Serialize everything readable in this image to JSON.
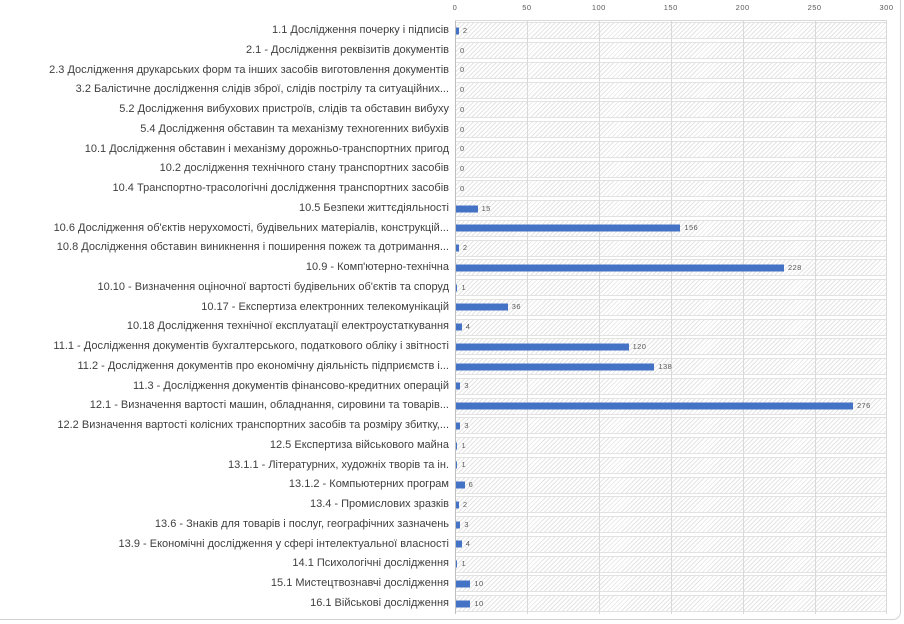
{
  "chart_data": {
    "type": "bar",
    "orientation": "horizontal",
    "title": "",
    "xlabel": "",
    "ylabel": "",
    "xlim": [
      0,
      300
    ],
    "xticks": [
      0,
      50,
      100,
      150,
      200,
      250,
      300
    ],
    "grid": true,
    "legend": false,
    "data_labels": true,
    "bar_color": "#4472C4",
    "plot_area_fill": "diagonal-hatch-pattern",
    "categories": [
      "1.1 Дослідження почерку і підписів",
      "2.1 - Дослідження реквізитів документів",
      "2.3 Дослідження друкарських форм та інших засобів виготовлення документів",
      "3.2 Балістичне дослідження слідів зброї, слідів пострілу та ситуаційних...",
      "5.2 Дослідження вибухових пристроїв, слідів та обставин вибуху",
      "5.4 Дослідження обставин та механізму техногенних вибухів",
      "10.1 Дослідження обставин і механізму дорожньо-транспортних пригод",
      "10.2 дослідження технічного стану транспортних засобів",
      "10.4 Транспортно-трасологічні дослідження транспортних засобів",
      "10.5 Безпеки життєдіяльності",
      "10.6 Дослідження об'єктів нерухомості, будівельних матеріалів, конструкцій...",
      "10.8 Дослідження обставин виникнення і поширення пожеж та дотримання...",
      "10.9 - Комп'ютерно-технічна",
      "10.10 - Визначення оціночної вартості будівельних об'єктів та споруд",
      "10.17 - Експертиза електронних телекомунікацій",
      "10.18 Дослідження технічної експлуатації електроустаткування",
      "11.1 - Дослідження документів бухгалтерського, податкового обліку і звітності",
      "11.2 - Дослідження документів про економічну діяльність підприємств і...",
      "11.3 - Дослідження документів фінансово-кредитних операцій",
      "12.1 - Визначення вартості машин, обладнання, сировини та товарів...",
      "12.2 Визначення вартості колісних транспортних засобів та розміру збитку,...",
      "12.5 Експертиза військового майна",
      "13.1.1 - Літературних, художніх творів та ін.",
      "13.1.2 - Компьютерних програм",
      "13.4 - Промислових зразків",
      "13.6 - Знаків для товарів і послуг, географічних зазначень",
      "13.9 - Економічні дослідження у сфері інтелектуальної власності",
      "14.1 Психологічні дослідження",
      "15.1 Мистецтвознавчі дослідження",
      "16.1 Військові дослідження"
    ],
    "values": [
      2,
      0,
      0,
      0,
      0,
      0,
      0,
      0,
      0,
      15,
      156,
      2,
      228,
      1,
      36,
      4,
      120,
      138,
      3,
      276,
      3,
      1,
      1,
      6,
      2,
      3,
      4,
      1,
      10,
      10
    ]
  },
  "colors": {
    "bar": "#4472C4",
    "gridline": "#D9D9D9",
    "axis_line": "#BFBFBF",
    "hatch": "#E4E4E4",
    "band_border": "#E2E2E2",
    "frame_border": "#D2D2D2",
    "category_text": "#3F3F3F",
    "value_text": "#595959",
    "tick_text": "#595959"
  }
}
